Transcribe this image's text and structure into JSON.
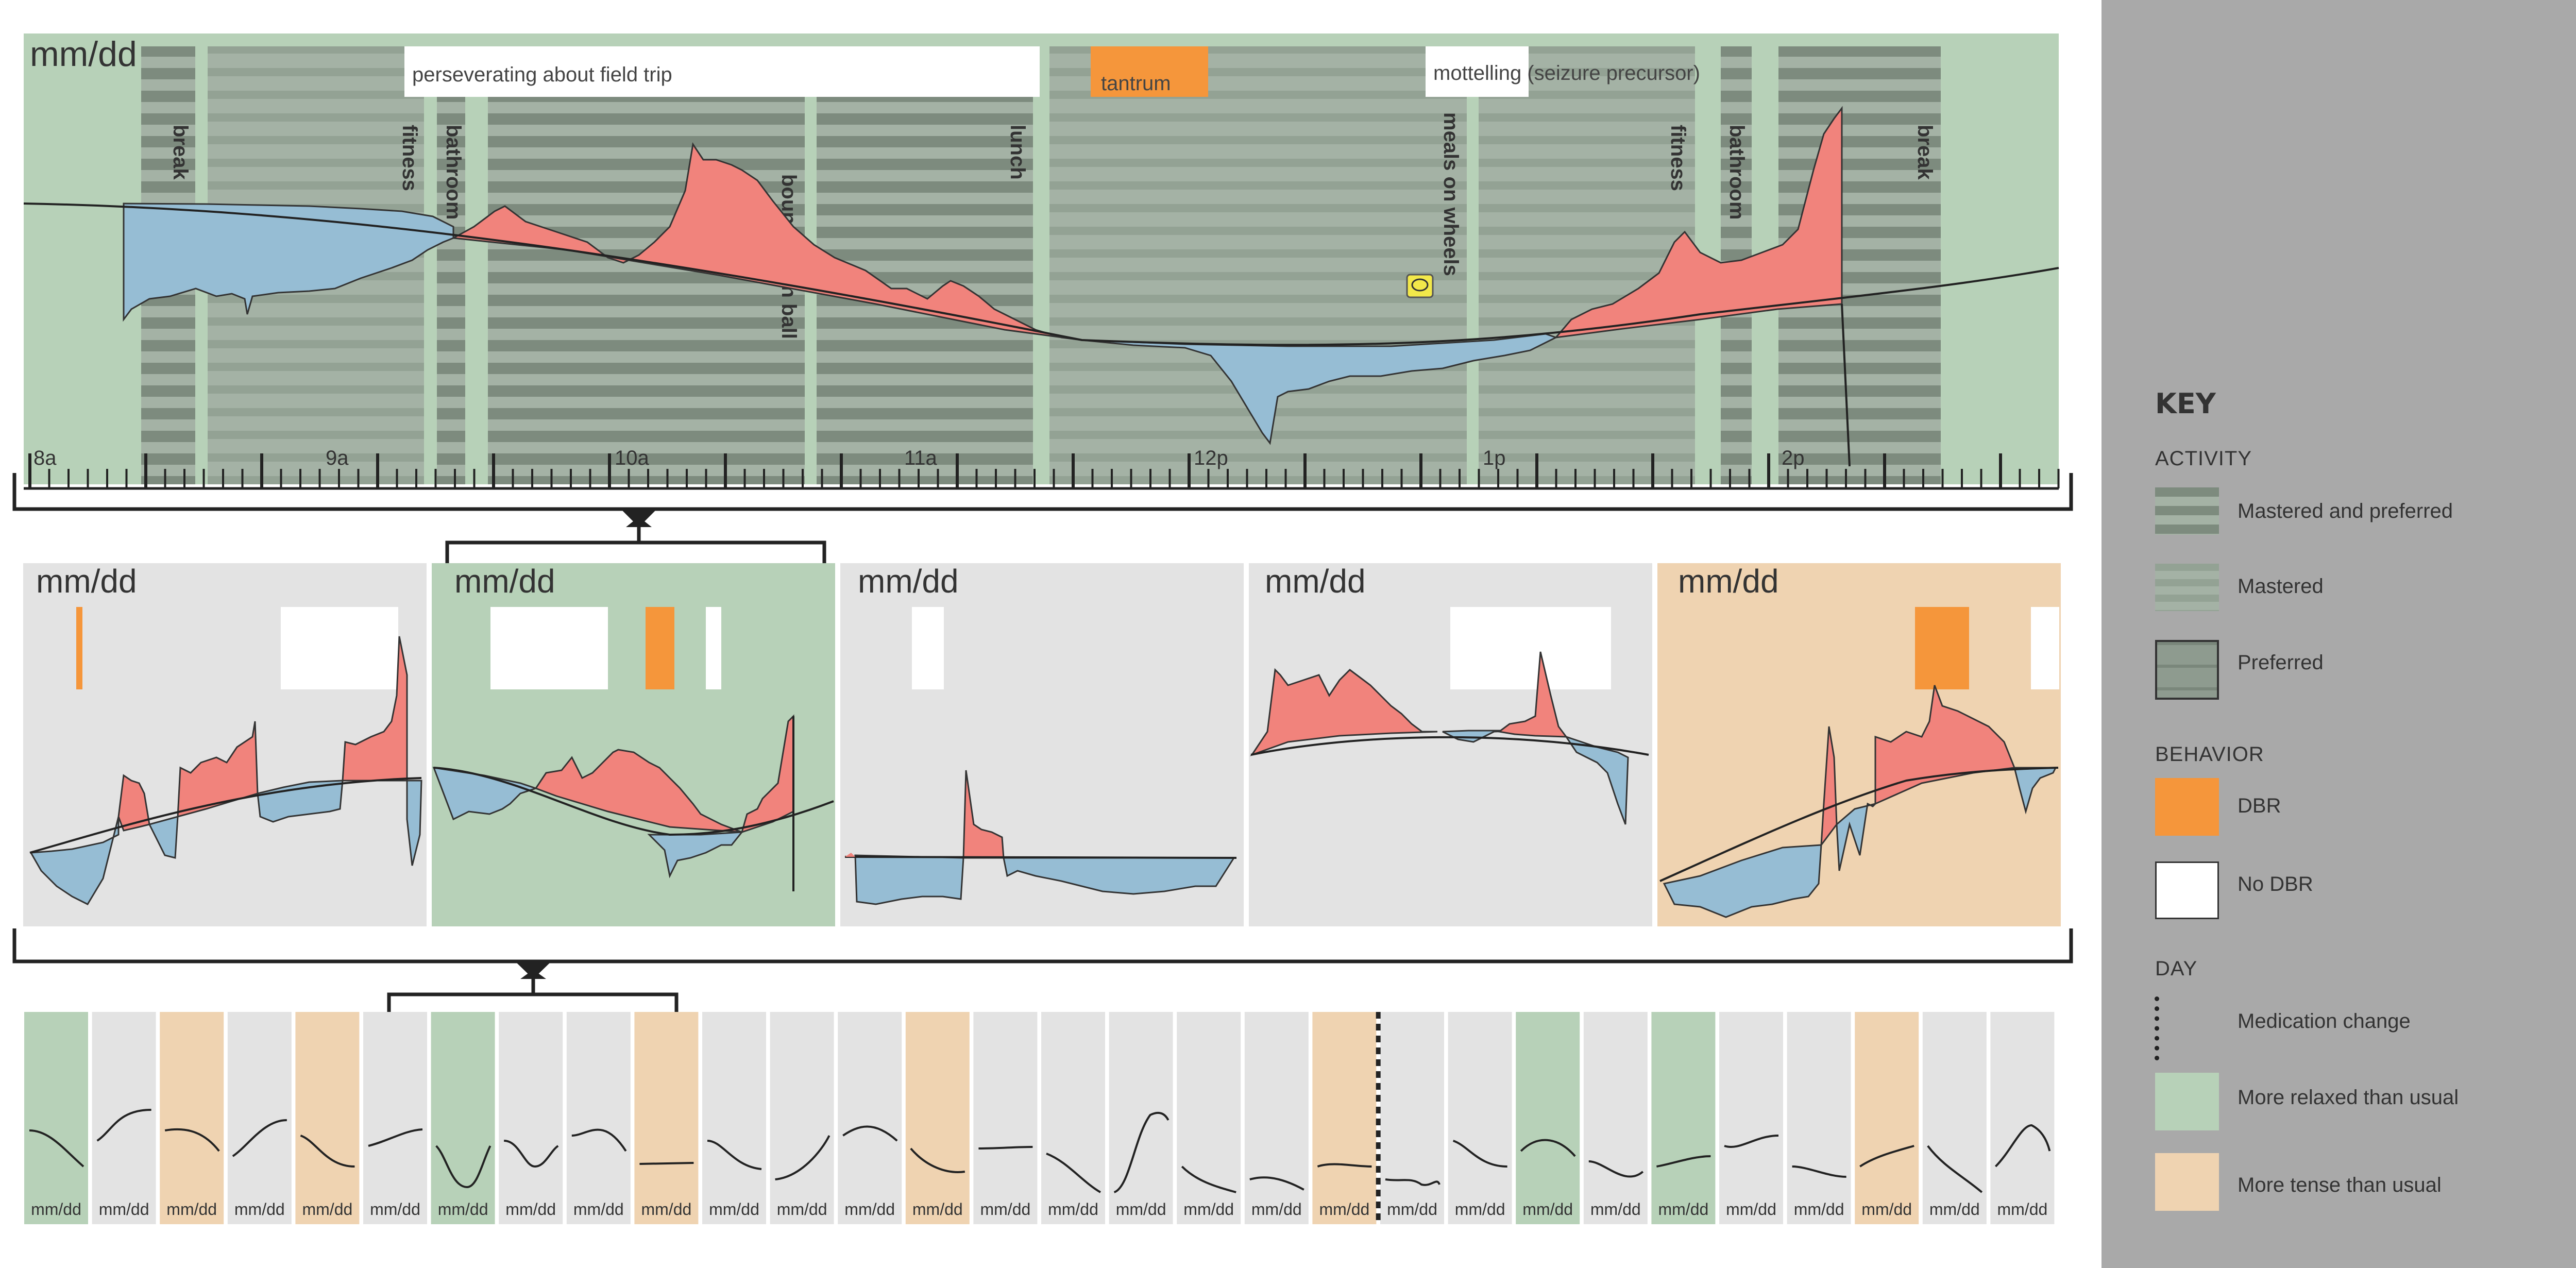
{
  "top": {
    "date": "mm/dd",
    "times": [
      "8a",
      "9a",
      "10a",
      "11a",
      "12p",
      "1p",
      "2p"
    ],
    "activities": [
      "break",
      "fitness",
      "bathroom",
      "bouncing on ball",
      "lunch",
      "meals on wheels",
      "fitness",
      "bathroom",
      "break"
    ],
    "annotations": [
      {
        "text": "perseverating about field trip",
        "kind": "No DBR"
      },
      {
        "text": "tantrum",
        "kind": "DBR"
      },
      {
        "text": "mottelling (seizure precursor)",
        "kind": "No DBR"
      }
    ]
  },
  "middle": {
    "panels": [
      {
        "date": "mm/dd",
        "mood": "neutral"
      },
      {
        "date": "mm/dd",
        "mood": "relaxed"
      },
      {
        "date": "mm/dd",
        "mood": "neutral"
      },
      {
        "date": "mm/dd",
        "mood": "neutral"
      },
      {
        "date": "mm/dd",
        "mood": "tense"
      }
    ]
  },
  "bottom": {
    "days": [
      {
        "date": "mm/dd",
        "mood": "relaxed"
      },
      {
        "date": "mm/dd",
        "mood": "neutral"
      },
      {
        "date": "mm/dd",
        "mood": "tense"
      },
      {
        "date": "mm/dd",
        "mood": "neutral"
      },
      {
        "date": "mm/dd",
        "mood": "tense"
      },
      {
        "date": "mm/dd",
        "mood": "neutral"
      },
      {
        "date": "mm/dd",
        "mood": "relaxed"
      },
      {
        "date": "mm/dd",
        "mood": "neutral"
      },
      {
        "date": "mm/dd",
        "mood": "neutral"
      },
      {
        "date": "mm/dd",
        "mood": "tense"
      },
      {
        "date": "mm/dd",
        "mood": "neutral"
      },
      {
        "date": "mm/dd",
        "mood": "neutral"
      },
      {
        "date": "mm/dd",
        "mood": "neutral"
      },
      {
        "date": "mm/dd",
        "mood": "tense"
      },
      {
        "date": "mm/dd",
        "mood": "neutral"
      },
      {
        "date": "mm/dd",
        "mood": "neutral"
      },
      {
        "date": "mm/dd",
        "mood": "neutral"
      },
      {
        "date": "mm/dd",
        "mood": "neutral"
      },
      {
        "date": "mm/dd",
        "mood": "neutral"
      },
      {
        "date": "mm/dd",
        "mood": "tense"
      },
      {
        "date": "mm/dd",
        "mood": "neutral"
      },
      {
        "date": "mm/dd",
        "mood": "neutral"
      },
      {
        "date": "mm/dd",
        "mood": "relaxed"
      },
      {
        "date": "mm/dd",
        "mood": "neutral"
      },
      {
        "date": "mm/dd",
        "mood": "relaxed"
      },
      {
        "date": "mm/dd",
        "mood": "neutral"
      },
      {
        "date": "mm/dd",
        "mood": "neutral"
      },
      {
        "date": "mm/dd",
        "mood": "tense"
      },
      {
        "date": "mm/dd",
        "mood": "neutral"
      },
      {
        "date": "mm/dd",
        "mood": "neutral"
      }
    ],
    "medication_change_after_index": 19
  },
  "key": {
    "title": "KEY",
    "activity_heading": "ACTIVITY",
    "activity_items": [
      "Mastered and preferred",
      "Mastered",
      "Preferred"
    ],
    "behavior_heading": "BEHAVIOR",
    "behavior_items": [
      "DBR",
      "No DBR"
    ],
    "day_heading": "DAY",
    "day_items": [
      "Medication change",
      "More relaxed than usual",
      "More tense than usual"
    ]
  },
  "colors": {
    "relaxed": "#b7d1b8",
    "tense": "#efd3b1",
    "neutral": "#e3e3e3",
    "activity_dark": "#7c8a7d",
    "activity_mid": "#a2b0a3",
    "positive_area": "#f1837c",
    "negative_area": "#96bdd4",
    "dbr": "#f5963b",
    "key_bg": "#a9a9a9"
  }
}
